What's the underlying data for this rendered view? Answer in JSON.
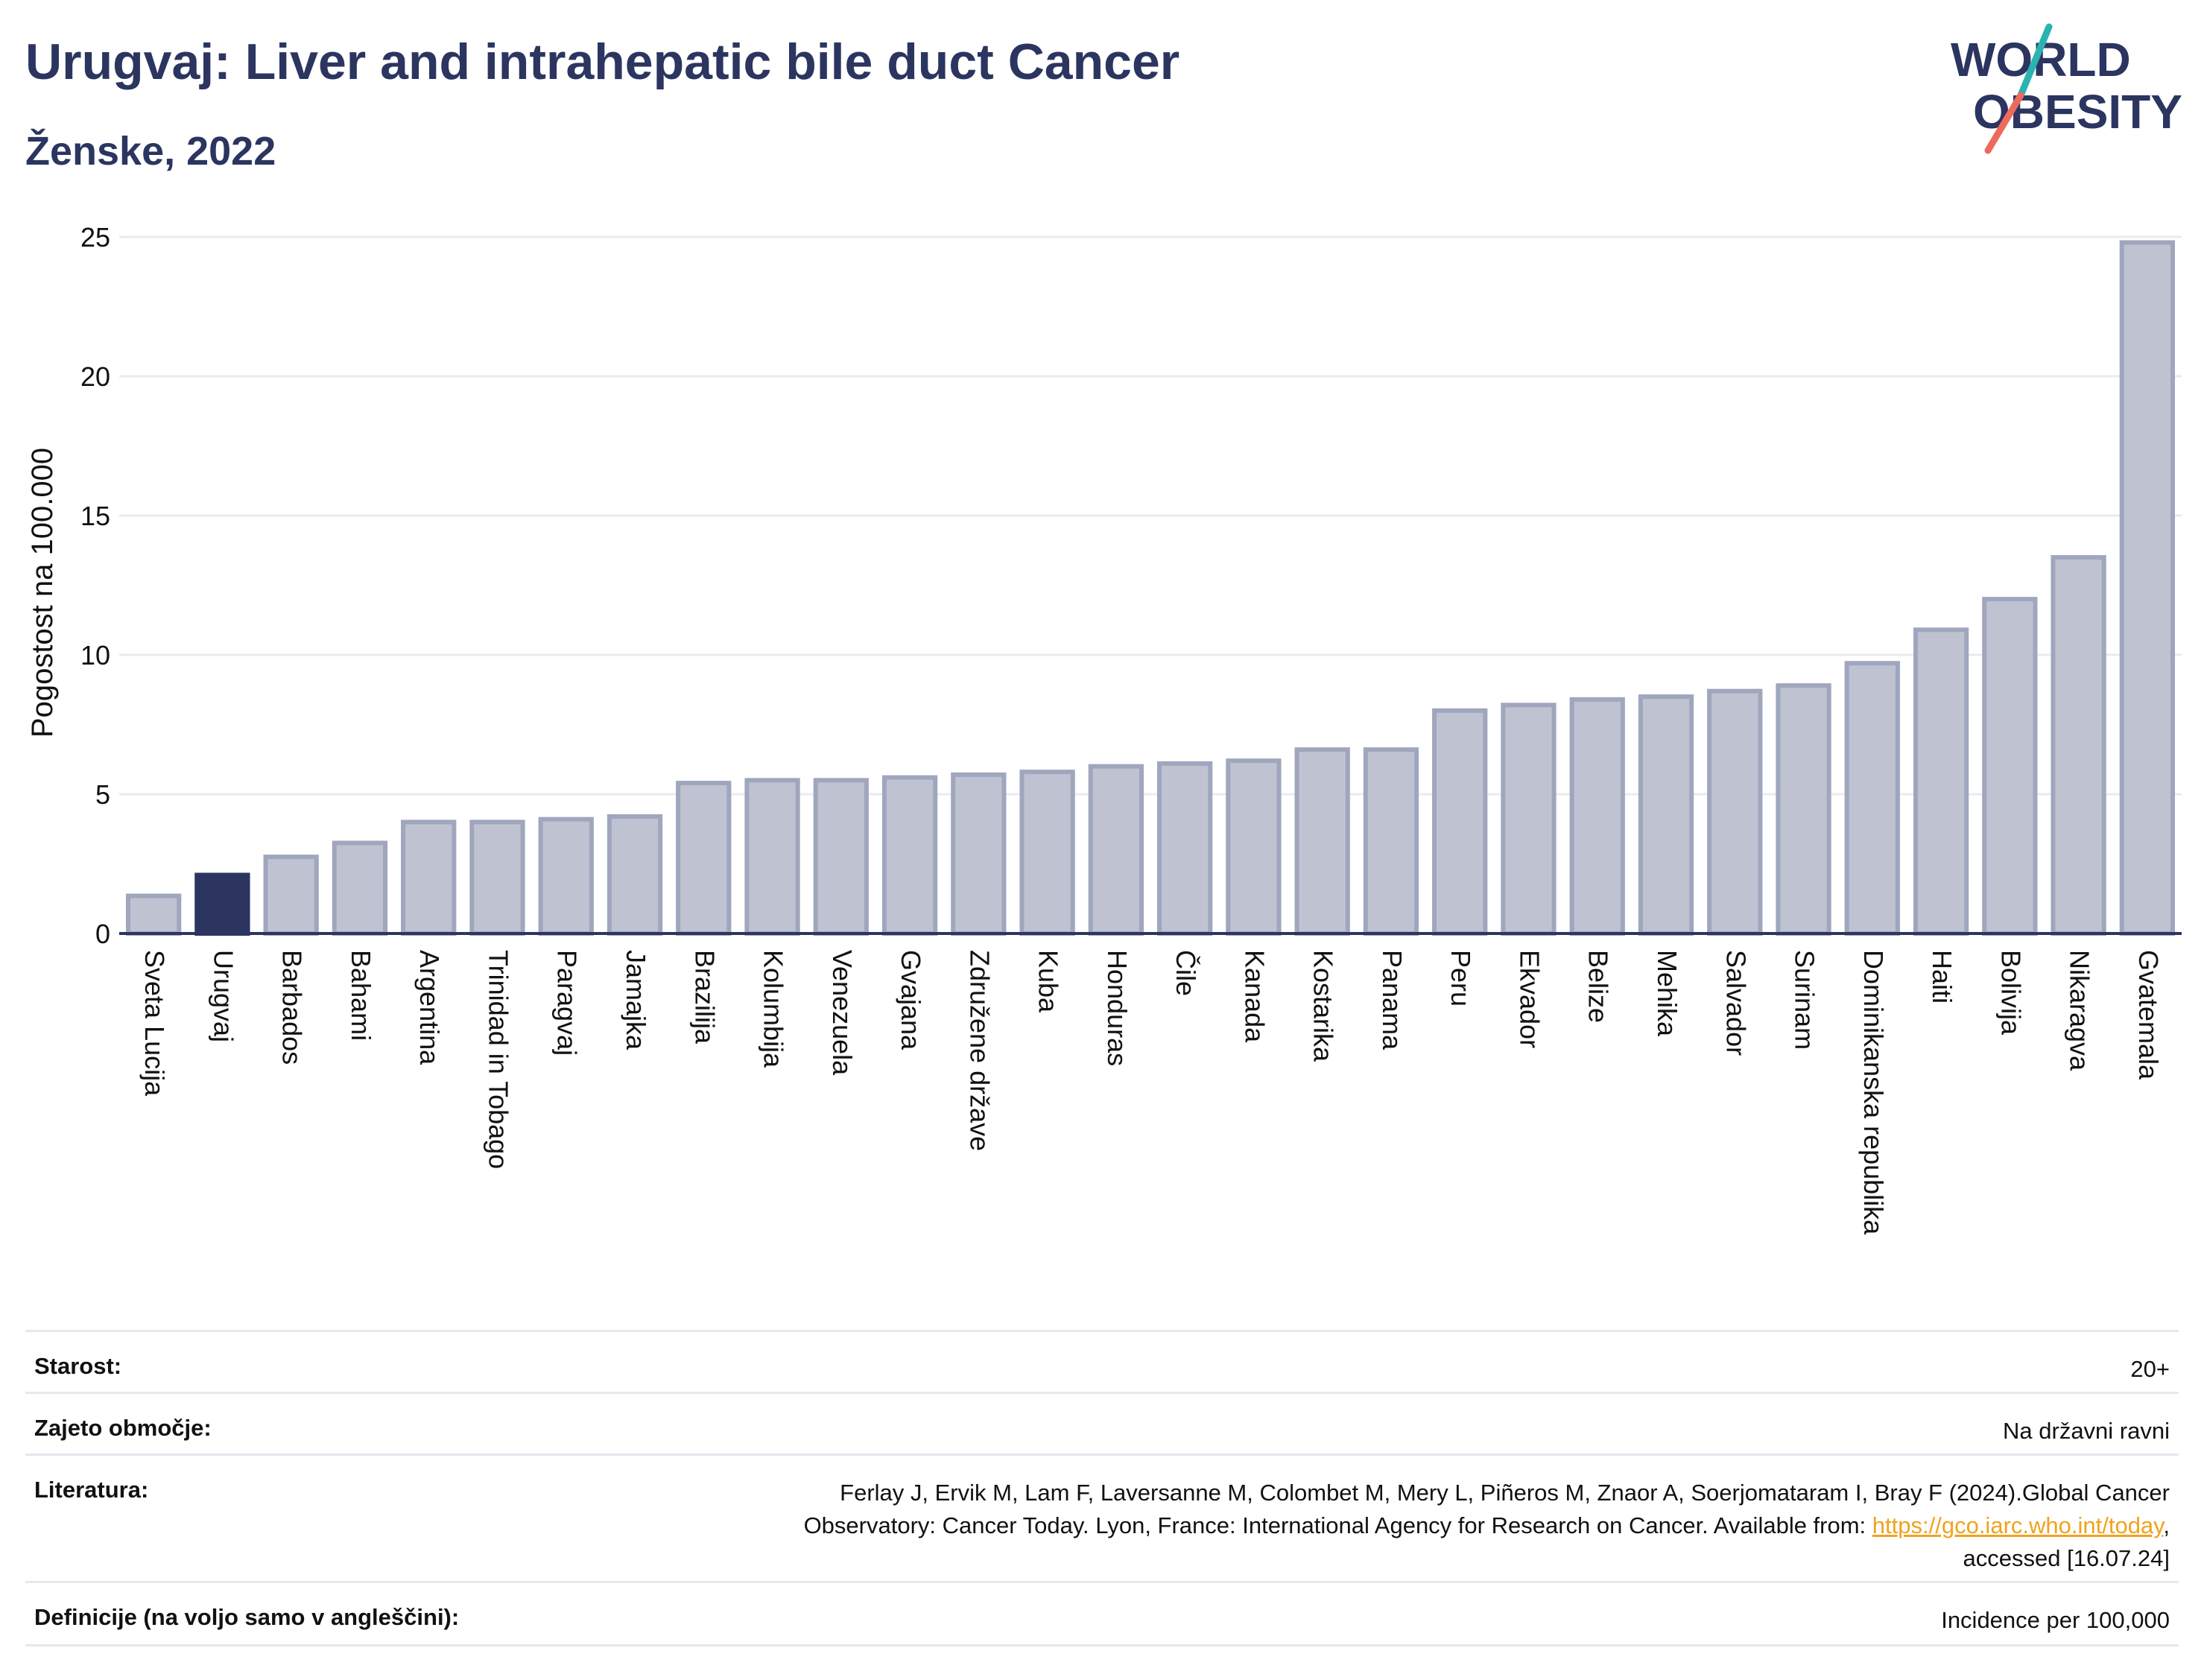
{
  "header": {
    "title": "Urugvaj: Liver and intrahepatic bile duct Cancer",
    "subtitle": "Ženske, 2022"
  },
  "logo": {
    "line1": "WORLD",
    "line2": "OBESITY",
    "name": "world-obesity-logo"
  },
  "colors": {
    "bar_default": "#bfc3d1",
    "bar_border": "#9fa6bd",
    "bar_highlight": "#2b3560",
    "title": "#2b3560",
    "grid": "#e9ebf0",
    "link": "#f0a31d"
  },
  "chart_data": {
    "type": "bar",
    "ylabel": "Pogostost na 100.000",
    "ylim": [
      0,
      25
    ],
    "yticks": [
      0,
      5,
      10,
      15,
      20,
      25
    ],
    "grid": true,
    "highlight": "Urugvaj",
    "categories": [
      "Sveta Lucija",
      "Urugvaj",
      "Barbados",
      "Bahami",
      "Argentina",
      "Trinidad in Tobago",
      "Paragvaj",
      "Jamajka",
      "Brazilija",
      "Kolumbija",
      "Venezuela",
      "Gvajana",
      "Združene države",
      "Kuba",
      "Honduras",
      "Čile",
      "Kanada",
      "Kostarika",
      "Panama",
      "Peru",
      "Ekvador",
      "Belize",
      "Mehika",
      "Salvador",
      "Surinam",
      "Dominikanska republika",
      "Haiti",
      "Bolivija",
      "Nikaragva",
      "Gvatemala"
    ],
    "values": [
      1.35,
      2.1,
      2.75,
      3.25,
      4.0,
      4.0,
      4.1,
      4.2,
      5.4,
      5.5,
      5.5,
      5.6,
      5.7,
      5.8,
      6.0,
      6.1,
      6.2,
      6.6,
      6.6,
      8.0,
      8.2,
      8.4,
      8.5,
      8.7,
      8.9,
      9.7,
      10.9,
      12.0,
      13.5,
      24.8
    ]
  },
  "meta": {
    "age": {
      "label": "Starost:",
      "value": "20+"
    },
    "coverage": {
      "label": "Zajeto območje:",
      "value": "Na državni ravni"
    },
    "references": {
      "label": "Literatura:",
      "line1": "Ferlay J, Ervik M, Lam F, Laversanne M, Colombet M, Mery L, Piñeros M, Znaor A, Soerjomataram I, Bray F (2024).Global Cancer",
      "line2_text": "Observatory: Cancer Today. Lyon, France: International Agency for Research on Cancer. Available from: ",
      "link": "https://gco.iarc.who.int/today",
      "line2_after": ",",
      "line3": "accessed [16.07.24]"
    },
    "definitions": {
      "label": "Definicije (na voljo samo v angleščini):",
      "value": "Incidence per 100,000"
    }
  }
}
